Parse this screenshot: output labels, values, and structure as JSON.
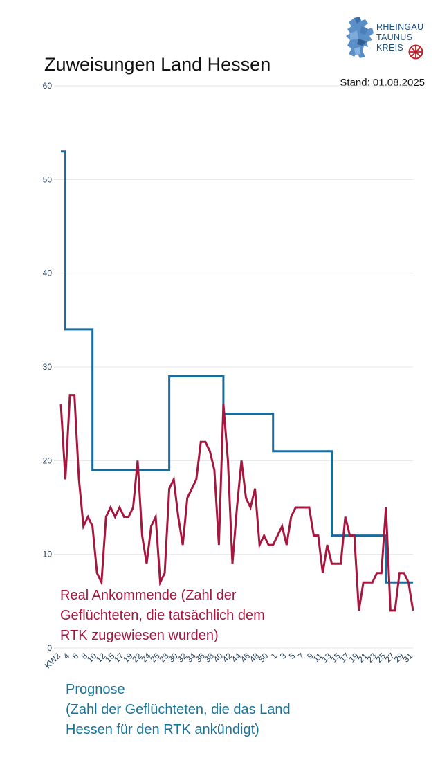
{
  "header": {
    "title": "Zuweisungen Land Hessen",
    "stand": "Stand: 01.08.2025"
  },
  "logo": {
    "icon": "hessen-lion-icon",
    "line1": "RHEINGAU",
    "line2": "TAUNUS",
    "line3": "KREIS",
    "emblem": "mainz-wheel-icon"
  },
  "legend": {
    "real_lines": [
      "Real Ankommende (Zahl der",
      "Geflüchteten, die tatsächlich dem",
      "RTK zugewiesen wurden)"
    ],
    "prognose_lines": [
      "Prognose",
      "(Zahl der Geflüchteten, die das Land",
      "Hessen für den RTK ankündigt)"
    ]
  },
  "colors": {
    "prognose": "#1a6a9a",
    "real": "#a6173f",
    "grid": "#e6e6e6",
    "axis_text": "#1f3b57"
  },
  "chart_data": {
    "type": "line",
    "ylim": [
      0,
      60
    ],
    "yticks": [
      0,
      10,
      20,
      30,
      40,
      50,
      60
    ],
    "grid": true,
    "x_tick_labels": [
      "KW2",
      "4",
      "6",
      "8",
      "10",
      "12",
      "15",
      "17",
      "19",
      "22",
      "24",
      "26",
      "28",
      "30",
      "32",
      "34",
      "36",
      "38",
      "40",
      "42",
      "44",
      "46",
      "48",
      "50",
      "1",
      "3",
      "5",
      "7",
      "9",
      "11",
      "13",
      "15",
      "17",
      "19",
      "21",
      "23",
      "25",
      "27",
      "29",
      "31"
    ],
    "series": [
      {
        "name": "Prognose",
        "values": [
          53,
          34,
          34,
          34,
          34,
          34,
          34,
          19,
          19,
          19,
          19,
          19,
          19,
          19,
          19,
          19,
          19,
          19,
          19,
          19,
          19,
          19,
          19,
          19,
          29,
          29,
          29,
          29,
          29,
          29,
          29,
          29,
          29,
          29,
          29,
          29,
          25,
          25,
          25,
          25,
          25,
          25,
          25,
          25,
          25,
          25,
          25,
          21,
          21,
          21,
          21,
          21,
          21,
          21,
          21,
          21,
          21,
          21,
          21,
          21,
          12,
          12,
          12,
          12,
          12,
          12,
          12,
          12,
          12,
          12,
          12,
          12,
          7,
          7,
          7,
          7,
          7,
          7,
          7
        ]
      },
      {
        "name": "Real Ankommende",
        "values": [
          26,
          18,
          27,
          27,
          18,
          13,
          14,
          13,
          8,
          7,
          14,
          15,
          14,
          15,
          14,
          14,
          15,
          20,
          12,
          9,
          13,
          14,
          7,
          8,
          17,
          18,
          14,
          11,
          16,
          17,
          18,
          22,
          22,
          21,
          19,
          11,
          26,
          20,
          9,
          15,
          20,
          16,
          15,
          17,
          11,
          12,
          11,
          11,
          12,
          13,
          11,
          14,
          15,
          15,
          15,
          15,
          12,
          12,
          8,
          11,
          9,
          9,
          9,
          14,
          12,
          12,
          4,
          7,
          7,
          7,
          8,
          8,
          15,
          4,
          4,
          8,
          8,
          7,
          4
        ]
      }
    ]
  }
}
